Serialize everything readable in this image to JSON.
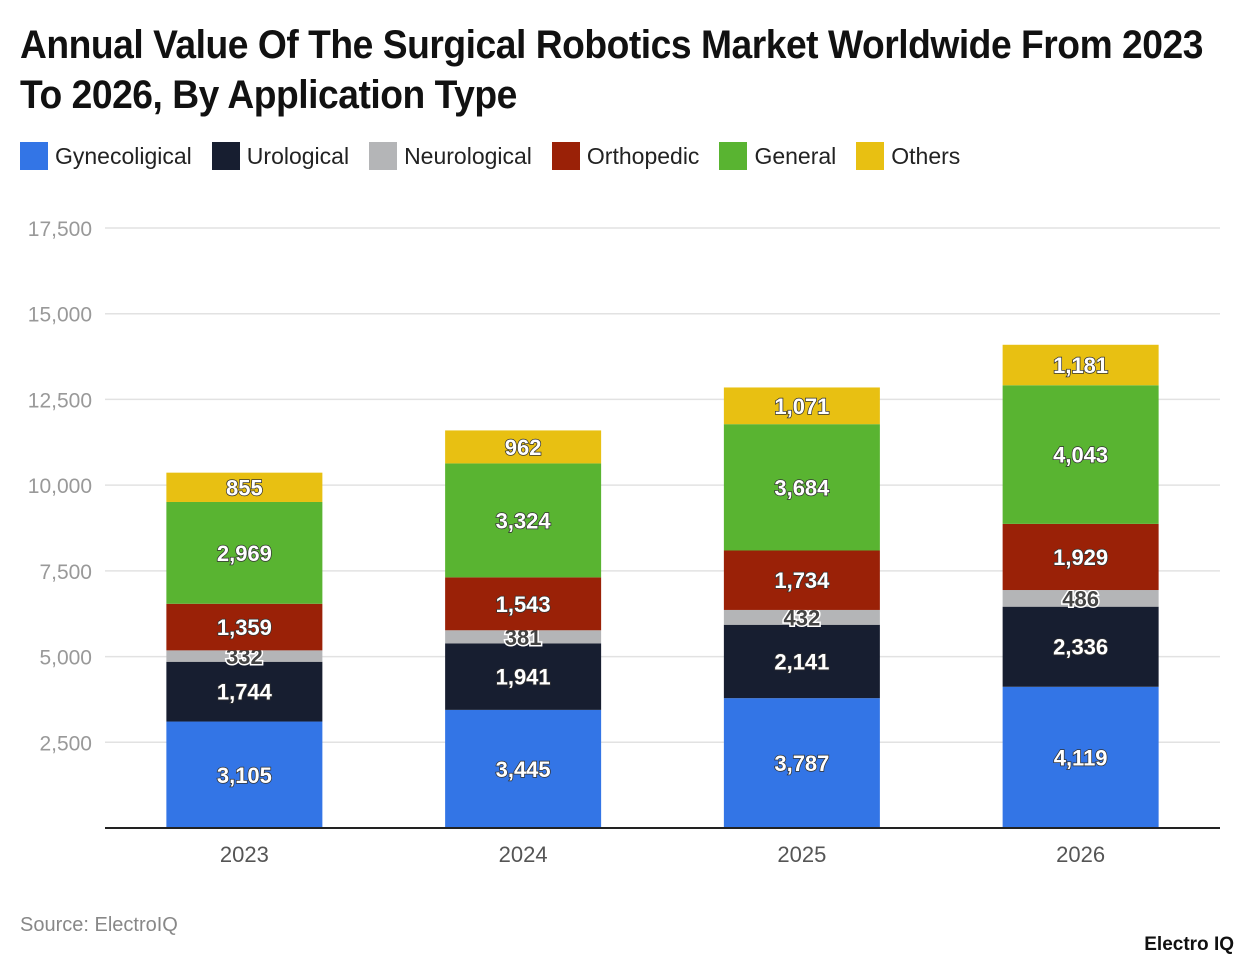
{
  "title": "Annual Value Of The Surgical Robotics Market Worldwide From 2023 To 2026, By Application Type",
  "source": "Source: ElectroIQ",
  "logo": "Electro IQ",
  "chart_data": {
    "type": "bar",
    "stacked": true,
    "categories": [
      "2023",
      "2024",
      "2025",
      "2026"
    ],
    "series": [
      {
        "name": "Gynecoligical",
        "color": "#3375e6",
        "values": [
          3105,
          3445,
          3787,
          4119
        ]
      },
      {
        "name": "Urological",
        "color": "#171e30",
        "values": [
          1744,
          1941,
          2141,
          2336
        ]
      },
      {
        "name": "Neurological",
        "color": "#b4b5b7",
        "values": [
          332,
          381,
          432,
          486
        ]
      },
      {
        "name": "Orthopedic",
        "color": "#9a2107",
        "values": [
          1359,
          1543,
          1734,
          1929
        ]
      },
      {
        "name": "General",
        "color": "#59b431",
        "values": [
          2969,
          3324,
          3684,
          4043
        ]
      },
      {
        "name": "Others",
        "color": "#e8c012",
        "values": [
          855,
          962,
          1071,
          1181
        ]
      }
    ],
    "ylim": [
      0,
      17500
    ],
    "yticks": [
      "2,500",
      "5,000",
      "7,500",
      "10,000",
      "12,500",
      "15,000",
      "17,500"
    ],
    "grid": true,
    "legend": "top-left"
  }
}
